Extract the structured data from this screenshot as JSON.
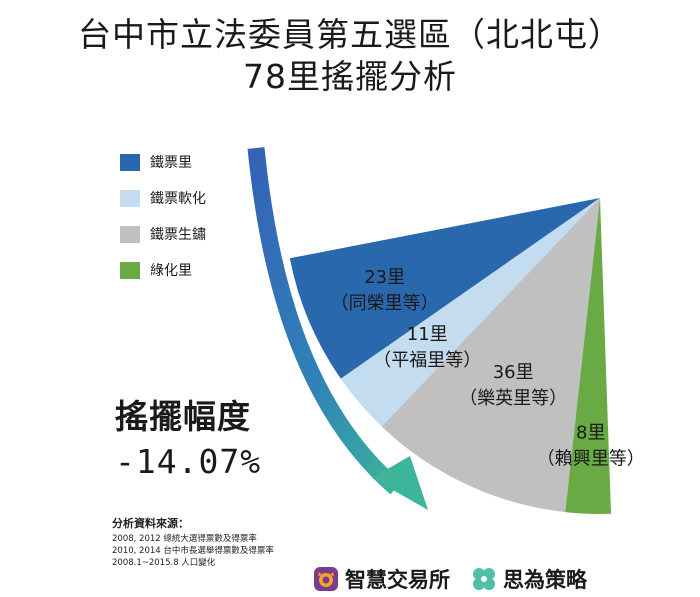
{
  "title": {
    "line1": "台中市立法委員第五選區（北北屯）",
    "line2": "78里搖擺分析"
  },
  "chart_data": {
    "type": "pie",
    "categories": [
      "鐵票里",
      "鐵票軟化",
      "鐵票生鏽",
      "綠化里"
    ],
    "values": [
      23,
      11,
      36,
      8
    ],
    "colors": [
      "#2a68ad",
      "#c4dcf0",
      "#c0c0c0",
      "#6aaa45"
    ],
    "slice_labels": [
      {
        "count": "23里",
        "example": "（同榮里等）"
      },
      {
        "count": "11里",
        "example": "（平福里等）"
      },
      {
        "count": "36里",
        "example": "（樂英里等）"
      },
      {
        "count": "8里",
        "example": "（賴興里等）"
      }
    ],
    "legend_position": "top-left"
  },
  "legend": [
    {
      "label": "鐵票里",
      "color": "#2a68ad"
    },
    {
      "label": "鐵票軟化",
      "color": "#c4dcf0"
    },
    {
      "label": "鐵票生鏽",
      "color": "#c0c0c0"
    },
    {
      "label": "綠化里",
      "color": "#6aaa45"
    }
  ],
  "swing": {
    "label": "搖擺幅度",
    "value": "-14.07%"
  },
  "sources": {
    "title": "分析資料來源：",
    "lines": [
      "2008, 2012 總統大選得票數及得票率",
      "2010, 2014 台中市長選舉得票數及得票率",
      "2008.1~2015.8 人口變化"
    ]
  },
  "logos": {
    "left": "智慧交易所",
    "right": "思為策略"
  }
}
